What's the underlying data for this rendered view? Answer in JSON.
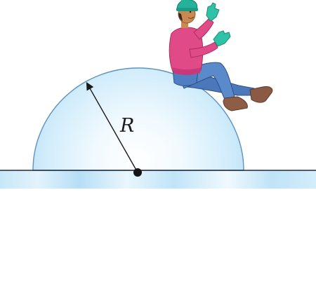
{
  "figure": {
    "radius_label": "R"
  },
  "colors": {
    "dome_fill_center": "#ffffff",
    "dome_fill_edge": "#bfe4f8",
    "dome_stroke": "#5e92bf",
    "ground_line": "#1e2a36",
    "ice_strip": "#c6e7f8",
    "sweater": "#e04a86",
    "jeans": "#4f7fc2",
    "hat": "#22b39a",
    "gloves": "#2ec3a7",
    "boots": "#8a5a44",
    "skin": "#c98a52"
  },
  "icons": {
    "center_point": "filled-dot",
    "radius_arrow": "arrow-up-left"
  }
}
